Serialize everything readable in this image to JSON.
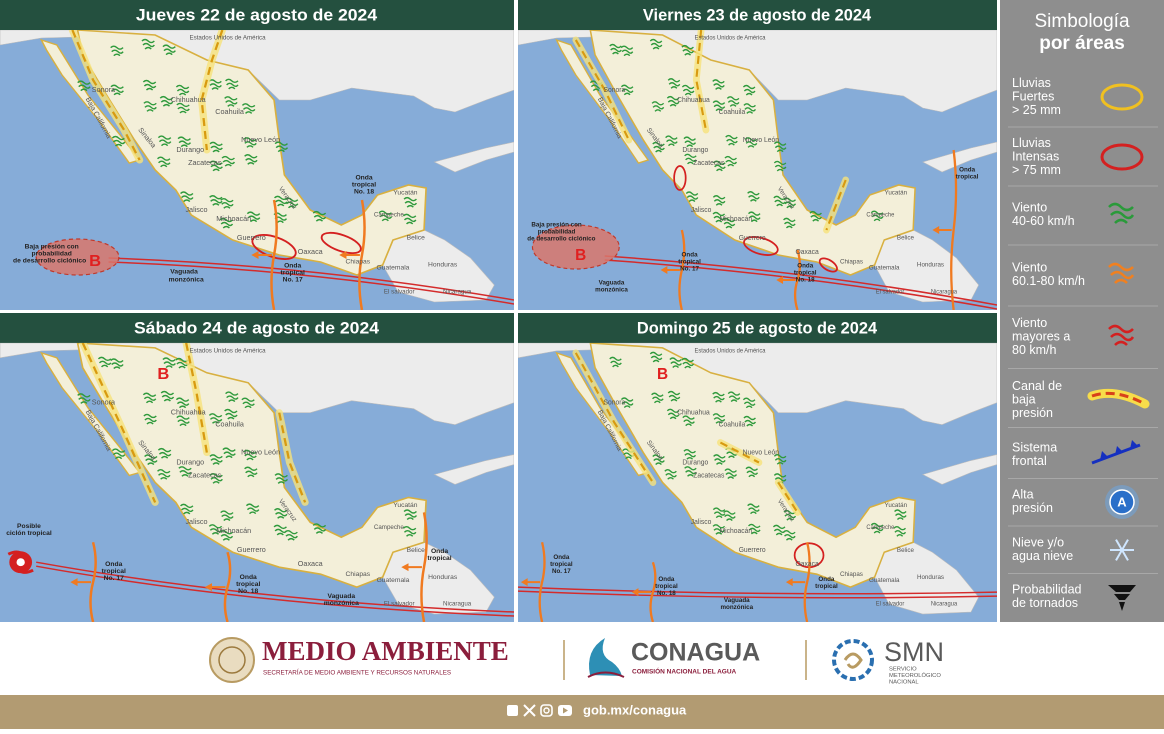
{
  "maps": {
    "place_labels": [
      "Estados Unidos de América",
      "Sonora",
      "Baja California",
      "Sinaloa",
      "Chihuahua",
      "Coahuila",
      "Nuevo León",
      "Durango",
      "Zacatecas",
      "Jalisco",
      "Michoacán",
      "Guerrero",
      "Oaxaca",
      "Chiapas",
      "Veracruz",
      "Campeche",
      "Yucatán",
      "Belice",
      "Guatemala",
      "Honduras",
      "El salvador",
      "Nicaragua"
    ],
    "panels": [
      {
        "title": "Jueves 22 de agosto de 2024",
        "labels": [
          "Baja presión con",
          "probabilidad",
          "de desarrollo ciclónico",
          "B",
          "Vaguada",
          "monzónica",
          "Onda",
          "tropical",
          "No. 17",
          "Onda",
          "tropical",
          "No. 18"
        ]
      },
      {
        "title": "Viernes 23 de agosto de 2024",
        "labels": [
          "Baja presión con",
          "probabilidad",
          "de desarrollo ciclónico",
          "B",
          "Vaguada",
          "monzónica",
          "Onda",
          "tropical",
          "No. 17",
          "Onda",
          "tropical",
          "No. 18",
          "Onda",
          "tropical"
        ]
      },
      {
        "title": "Sábado 24 de agosto de 2024",
        "labels": [
          "B",
          "Posible",
          "ciclón tropical",
          "Onda",
          "tropical",
          "No. 17",
          "Onda",
          "tropical",
          "No. 18",
          "Vaguada",
          "monzónica",
          "Onda",
          "tropical"
        ]
      },
      {
        "title": "Domingo 25 de agosto de 2024",
        "labels": [
          "B",
          "Onda",
          "tropical",
          "No. 17",
          "Onda",
          "tropical",
          "No. 18",
          "Vaguada",
          "monzónica",
          "Onda",
          "tropical"
        ]
      }
    ]
  },
  "legend": {
    "title": [
      "Simbología",
      "por áreas"
    ],
    "items": [
      {
        "lines": [
          "Lluvias",
          "Fuertes",
          "> 25 mm"
        ]
      },
      {
        "lines": [
          "Lluvias",
          "Intensas",
          "> 75 mm"
        ]
      },
      {
        "lines": [
          "Viento",
          "40-60 km/h"
        ]
      },
      {
        "lines": [
          "Viento",
          "60.1-80 km/h"
        ]
      },
      {
        "lines": [
          "Viento",
          "mayores a",
          "80 km/h"
        ]
      },
      {
        "lines": [
          "Canal de",
          "baja",
          "presión"
        ]
      },
      {
        "lines": [
          "Sistema",
          "frontal"
        ]
      },
      {
        "lines": [
          "Alta",
          "presión"
        ],
        "icon_text": "A"
      },
      {
        "lines": [
          "Nieve y/o",
          "agua nieve"
        ]
      },
      {
        "lines": [
          "Probabilidad",
          "de tornados"
        ]
      }
    ]
  },
  "footer": {
    "semarnat": {
      "name": "MEDIO AMBIENTE",
      "subtitle": "SECRETARÍA DE MEDIO AMBIENTE Y RECURSOS NATURALES"
    },
    "conagua": {
      "name": "CONAGUA",
      "subtitle": "COMISIÓN NACIONAL DEL AGUA"
    },
    "smn": {
      "name": "SMN",
      "subtitle": [
        "SERVICIO",
        "METEOROLÓGICO",
        "NACIONAL"
      ]
    },
    "url": "gob.mx/conagua"
  }
}
